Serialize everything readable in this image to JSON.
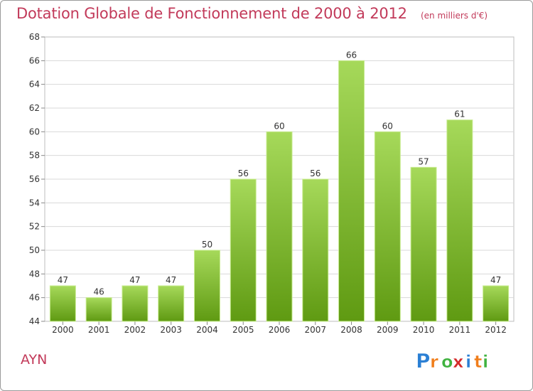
{
  "title": "Dotation Globale de Fonctionnement de 2000 à 2012",
  "unit": "(en milliers d'€)",
  "commune": "AYN",
  "brand": {
    "letters": [
      "P",
      "r",
      "o",
      "x",
      "i",
      "t",
      "i"
    ],
    "colors": [
      "#2a7fd4",
      "#f07d1a",
      "#3fb23f",
      "#d42a2a",
      "#2a7fd4",
      "#f07d1a",
      "#3fb23f"
    ]
  },
  "colors": {
    "title": "#c23a5a",
    "bar_top": "#a6d95a",
    "bar_bottom": "#5f9a12",
    "grid": "#d8d8d8",
    "axis_text": "#333333"
  },
  "chart_data": {
    "type": "bar",
    "categories": [
      "2000",
      "2001",
      "2002",
      "2003",
      "2004",
      "2005",
      "2006",
      "2007",
      "2008",
      "2009",
      "2010",
      "2011",
      "2012"
    ],
    "values": [
      47,
      46,
      47,
      47,
      50,
      56,
      60,
      56,
      66,
      60,
      57,
      61,
      47
    ],
    "ylim": [
      44,
      68
    ],
    "yticks": [
      44,
      46,
      48,
      50,
      52,
      54,
      56,
      58,
      60,
      62,
      64,
      66,
      68
    ],
    "grid": true,
    "data_labels": true
  }
}
